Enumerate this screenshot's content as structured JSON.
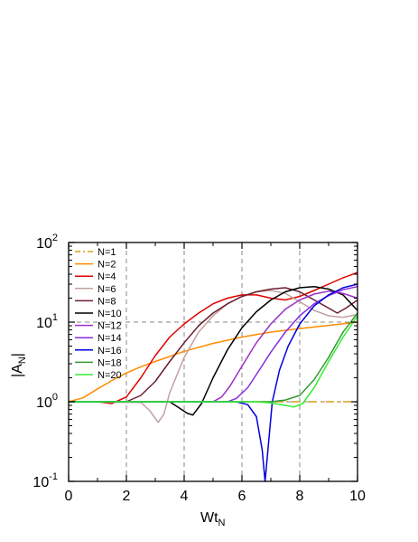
{
  "chart_data": {
    "type": "line",
    "xlabel": {
      "main": "Wt",
      "sub": "N"
    },
    "ylabel": {
      "prefix": "|A",
      "sub": "N",
      "suffix": "|"
    },
    "xlim": [
      0,
      10
    ],
    "ylim": [
      0.1,
      100
    ],
    "yscale": "log",
    "x_ticks": [
      "0",
      "2",
      "4",
      "6",
      "8",
      "10"
    ],
    "y_ticks": [
      {
        "base": "10",
        "exp": "-1"
      },
      {
        "base": "10",
        "exp": "0"
      },
      {
        "base": "10",
        "exp": "1"
      },
      {
        "base": "10",
        "exp": "2"
      }
    ],
    "grid": {
      "vertical_x": [
        2,
        4,
        6,
        8
      ],
      "horizontal_y": [
        1,
        10
      ],
      "style": "dashed"
    },
    "legend_position": "top-left",
    "series": [
      {
        "name": "N=1",
        "color": "#d4a017",
        "dash": "dash-dot",
        "points": [
          [
            0,
            1
          ],
          [
            10,
            1
          ]
        ]
      },
      {
        "name": "N=2",
        "color": "#ff8c00",
        "points": [
          [
            0,
            1
          ],
          [
            0.5,
            1.12
          ],
          [
            1,
            1.45
          ],
          [
            1.5,
            1.85
          ],
          [
            2,
            2.3
          ],
          [
            2.5,
            2.75
          ],
          [
            3,
            3.2
          ],
          [
            4,
            4.3
          ],
          [
            5,
            5.4
          ],
          [
            6,
            6.5
          ],
          [
            7,
            7.5
          ],
          [
            8,
            8.3
          ],
          [
            9,
            9.1
          ],
          [
            10,
            10
          ]
        ]
      },
      {
        "name": "N=4",
        "color": "#e00000",
        "points": [
          [
            0,
            1
          ],
          [
            1,
            1
          ],
          [
            1.5,
            0.95
          ],
          [
            2,
            1.15
          ],
          [
            2.5,
            2
          ],
          [
            3,
            3.8
          ],
          [
            3.5,
            6.5
          ],
          [
            4,
            9.5
          ],
          [
            4.5,
            13
          ],
          [
            5,
            17
          ],
          [
            5.5,
            20
          ],
          [
            6,
            22
          ],
          [
            6.5,
            22
          ],
          [
            7,
            20
          ],
          [
            7.5,
            19
          ],
          [
            8,
            21
          ],
          [
            8.5,
            25
          ],
          [
            9,
            30
          ],
          [
            9.5,
            36
          ],
          [
            10,
            42
          ]
        ]
      },
      {
        "name": "N=6",
        "color": "#c4a0a0",
        "points": [
          [
            0,
            1
          ],
          [
            2.5,
            0.98
          ],
          [
            2.8,
            0.78
          ],
          [
            3.1,
            0.55
          ],
          [
            3.3,
            0.7
          ],
          [
            3.5,
            1.3
          ],
          [
            4,
            3.6
          ],
          [
            4.5,
            7.5
          ],
          [
            5,
            12
          ],
          [
            5.5,
            17
          ],
          [
            6,
            21
          ],
          [
            6.5,
            24
          ],
          [
            7,
            25
          ],
          [
            7.5,
            23
          ],
          [
            8,
            18
          ],
          [
            8.5,
            14
          ],
          [
            9,
            12
          ],
          [
            9.5,
            11.5
          ],
          [
            10,
            12.5
          ]
        ]
      },
      {
        "name": "N=8",
        "color": "#6b1e2e",
        "points": [
          [
            0,
            1
          ],
          [
            2,
            1
          ],
          [
            2.5,
            1.2
          ],
          [
            3,
            1.8
          ],
          [
            3.5,
            3.2
          ],
          [
            4,
            5.5
          ],
          [
            4.5,
            9
          ],
          [
            5,
            13
          ],
          [
            5.5,
            17
          ],
          [
            6,
            21
          ],
          [
            6.5,
            24
          ],
          [
            7,
            26
          ],
          [
            7.5,
            27
          ],
          [
            8,
            24
          ],
          [
            8.5,
            19
          ],
          [
            9,
            15
          ],
          [
            9.3,
            13
          ],
          [
            9.6,
            15
          ],
          [
            10,
            19
          ]
        ]
      },
      {
        "name": "N=10",
        "color": "#000000",
        "points": [
          [
            0,
            1
          ],
          [
            3.5,
            1
          ],
          [
            3.8,
            0.85
          ],
          [
            4.1,
            0.72
          ],
          [
            4.3,
            0.68
          ],
          [
            4.6,
            0.95
          ],
          [
            5,
            2
          ],
          [
            5.5,
            4.5
          ],
          [
            6,
            8.5
          ],
          [
            6.5,
            13.5
          ],
          [
            7,
            19
          ],
          [
            7.5,
            24
          ],
          [
            8,
            27
          ],
          [
            8.5,
            28
          ],
          [
            9,
            26
          ],
          [
            9.5,
            22
          ],
          [
            10,
            14
          ]
        ]
      },
      {
        "name": "N=12",
        "color": "#9b30c8",
        "points": [
          [
            0,
            1
          ],
          [
            5,
            1
          ],
          [
            5.3,
            1.15
          ],
          [
            5.6,
            1.6
          ],
          [
            6,
            2.8
          ],
          [
            6.5,
            5.5
          ],
          [
            7,
            9.5
          ],
          [
            7.5,
            14.5
          ],
          [
            8,
            19
          ],
          [
            8.5,
            22.5
          ],
          [
            9,
            24.5
          ],
          [
            9.5,
            23
          ],
          [
            10,
            20
          ]
        ]
      },
      {
        "name": "N=14",
        "color": "#8a2be2",
        "points": [
          [
            0,
            1
          ],
          [
            5.5,
            1
          ],
          [
            5.8,
            1.1
          ],
          [
            6.2,
            1.5
          ],
          [
            6.6,
            2.5
          ],
          [
            7,
            4.2
          ],
          [
            7.5,
            7.5
          ],
          [
            8,
            12
          ],
          [
            8.5,
            17
          ],
          [
            9,
            21.5
          ],
          [
            9.5,
            25.5
          ],
          [
            10,
            28
          ]
        ]
      },
      {
        "name": "N=16",
        "color": "#0000e0",
        "points": [
          [
            0,
            1
          ],
          [
            5.8,
            1
          ],
          [
            6.2,
            0.92
          ],
          [
            6.5,
            0.65
          ],
          [
            6.7,
            0.25
          ],
          [
            6.8,
            0.1
          ],
          [
            6.9,
            0.25
          ],
          [
            7.05,
            1
          ],
          [
            7.3,
            2.5
          ],
          [
            7.6,
            5
          ],
          [
            8,
            9.5
          ],
          [
            8.5,
            16
          ],
          [
            9,
            22
          ],
          [
            9.5,
            27
          ],
          [
            10,
            30
          ]
        ]
      },
      {
        "name": "N=18",
        "color": "#339933",
        "points": [
          [
            0,
            1
          ],
          [
            7,
            1
          ],
          [
            7.5,
            1.05
          ],
          [
            8,
            1.2
          ],
          [
            8.5,
            1.9
          ],
          [
            9,
            3.6
          ],
          [
            9.5,
            7.5
          ],
          [
            10,
            13
          ]
        ]
      },
      {
        "name": "N=20",
        "color": "#33ee33",
        "points": [
          [
            0,
            1
          ],
          [
            6.5,
            1
          ],
          [
            7,
            0.97
          ],
          [
            7.5,
            0.9
          ],
          [
            7.8,
            0.86
          ],
          [
            8.1,
            0.95
          ],
          [
            8.5,
            1.5
          ],
          [
            9,
            3.2
          ],
          [
            9.5,
            6.5
          ],
          [
            10,
            12
          ]
        ]
      }
    ]
  }
}
